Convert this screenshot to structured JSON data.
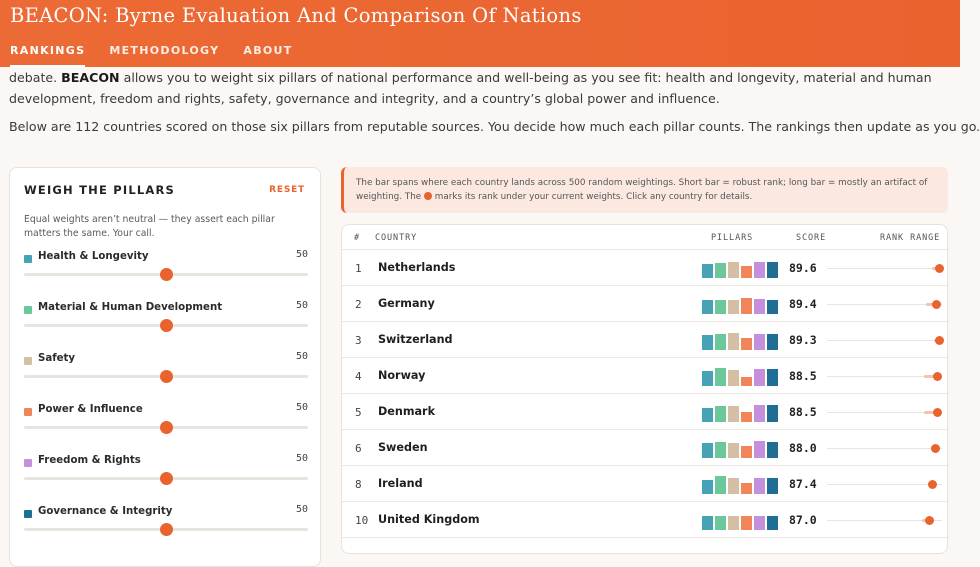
{
  "header": {
    "title": "BEACON: Byrne Evaluation And Comparison Of Nations",
    "tabs": [
      {
        "label": "RANKINGS",
        "active": true
      },
      {
        "label": "METHODOLOGY",
        "active": false
      },
      {
        "label": "ABOUT",
        "active": false
      }
    ]
  },
  "intro": {
    "lead": "debate. ",
    "brand": "BEACON",
    "text": " allows you to weight six pillars of national performance and well-being as you see fit: health and longevity, material and human development, freedom and rights, safety, governance and integrity, and a country’s global power and influence.",
    "second": "Below are 112 countries scored on those six pillars from reputable sources. You decide how much each pillar counts. The rankings then update as you go."
  },
  "weights_panel": {
    "title": "WEIGH THE PILLARS",
    "reset_label": "RESET",
    "note": "Equal weights aren’t neutral — they assert each pillar matters the same. Your call.",
    "pillars": [
      {
        "label": "Health & Longevity",
        "value": 50,
        "color": "#46a3b5"
      },
      {
        "label": "Material & Human Development",
        "value": 50,
        "color": "#6cc79a"
      },
      {
        "label": "Safety",
        "value": 50,
        "color": "#d5bfa3"
      },
      {
        "label": "Power & Influence",
        "value": 50,
        "color": "#f0855a"
      },
      {
        "label": "Freedom & Rights",
        "value": 50,
        "color": "#c68fdc"
      },
      {
        "label": "Governance & Integrity",
        "value": 50,
        "color": "#1f6f95"
      }
    ]
  },
  "callout": {
    "before_dot": "The bar spans where each country lands across 500 random weightings. Short bar = robust rank; long bar = mostly an artifact of weighting. The ",
    "after_dot": " marks its rank under your current weights. Click any country for details."
  },
  "table": {
    "headers": {
      "rank": "#",
      "country": "COUNTRY",
      "pillars": "PILLARS",
      "score": "SCORE",
      "range": "RANK RANGE"
    },
    "rows": [
      {
        "rank": "1",
        "country": "Netherlands",
        "score": "89.6",
        "pillars": [
          0.7,
          0.75,
          0.8,
          0.62,
          0.78,
          0.78
        ],
        "range": [
          0.91,
          0.99
        ],
        "dot": 0.97
      },
      {
        "rank": "2",
        "country": "Germany",
        "score": "89.4",
        "pillars": [
          0.68,
          0.72,
          0.72,
          0.82,
          0.74,
          0.72
        ],
        "range": [
          0.86,
          0.98
        ],
        "dot": 0.95
      },
      {
        "rank": "3",
        "country": "Switzerland",
        "score": "89.3",
        "pillars": [
          0.75,
          0.82,
          0.85,
          0.62,
          0.8,
          0.82
        ],
        "range": [
          0.93,
          0.99
        ],
        "dot": 0.97
      },
      {
        "rank": "4",
        "country": "Norway",
        "score": "88.5",
        "pillars": [
          0.75,
          0.9,
          0.82,
          0.45,
          0.85,
          0.85
        ],
        "range": [
          0.84,
          0.98
        ],
        "dot": 0.96
      },
      {
        "rank": "5",
        "country": "Denmark",
        "score": "88.5",
        "pillars": [
          0.72,
          0.8,
          0.8,
          0.52,
          0.85,
          0.85
        ],
        "range": [
          0.84,
          0.98
        ],
        "dot": 0.96
      },
      {
        "rank": "6",
        "country": "Sweden",
        "score": "88.0",
        "pillars": [
          0.75,
          0.78,
          0.74,
          0.62,
          0.84,
          0.82
        ],
        "range": [
          0.9,
          0.96
        ],
        "dot": 0.94
      },
      {
        "rank": "8",
        "country": "Ireland",
        "score": "87.4",
        "pillars": [
          0.72,
          0.88,
          0.8,
          0.55,
          0.8,
          0.8
        ],
        "range": [
          0.88,
          0.95
        ],
        "dot": 0.91
      },
      {
        "rank": "10",
        "country": "United Kingdom",
        "score": "87.0",
        "pillars": [
          0.7,
          0.72,
          0.72,
          0.68,
          0.72,
          0.72
        ],
        "range": [
          0.83,
          0.93
        ],
        "dot": 0.89
      }
    ]
  }
}
